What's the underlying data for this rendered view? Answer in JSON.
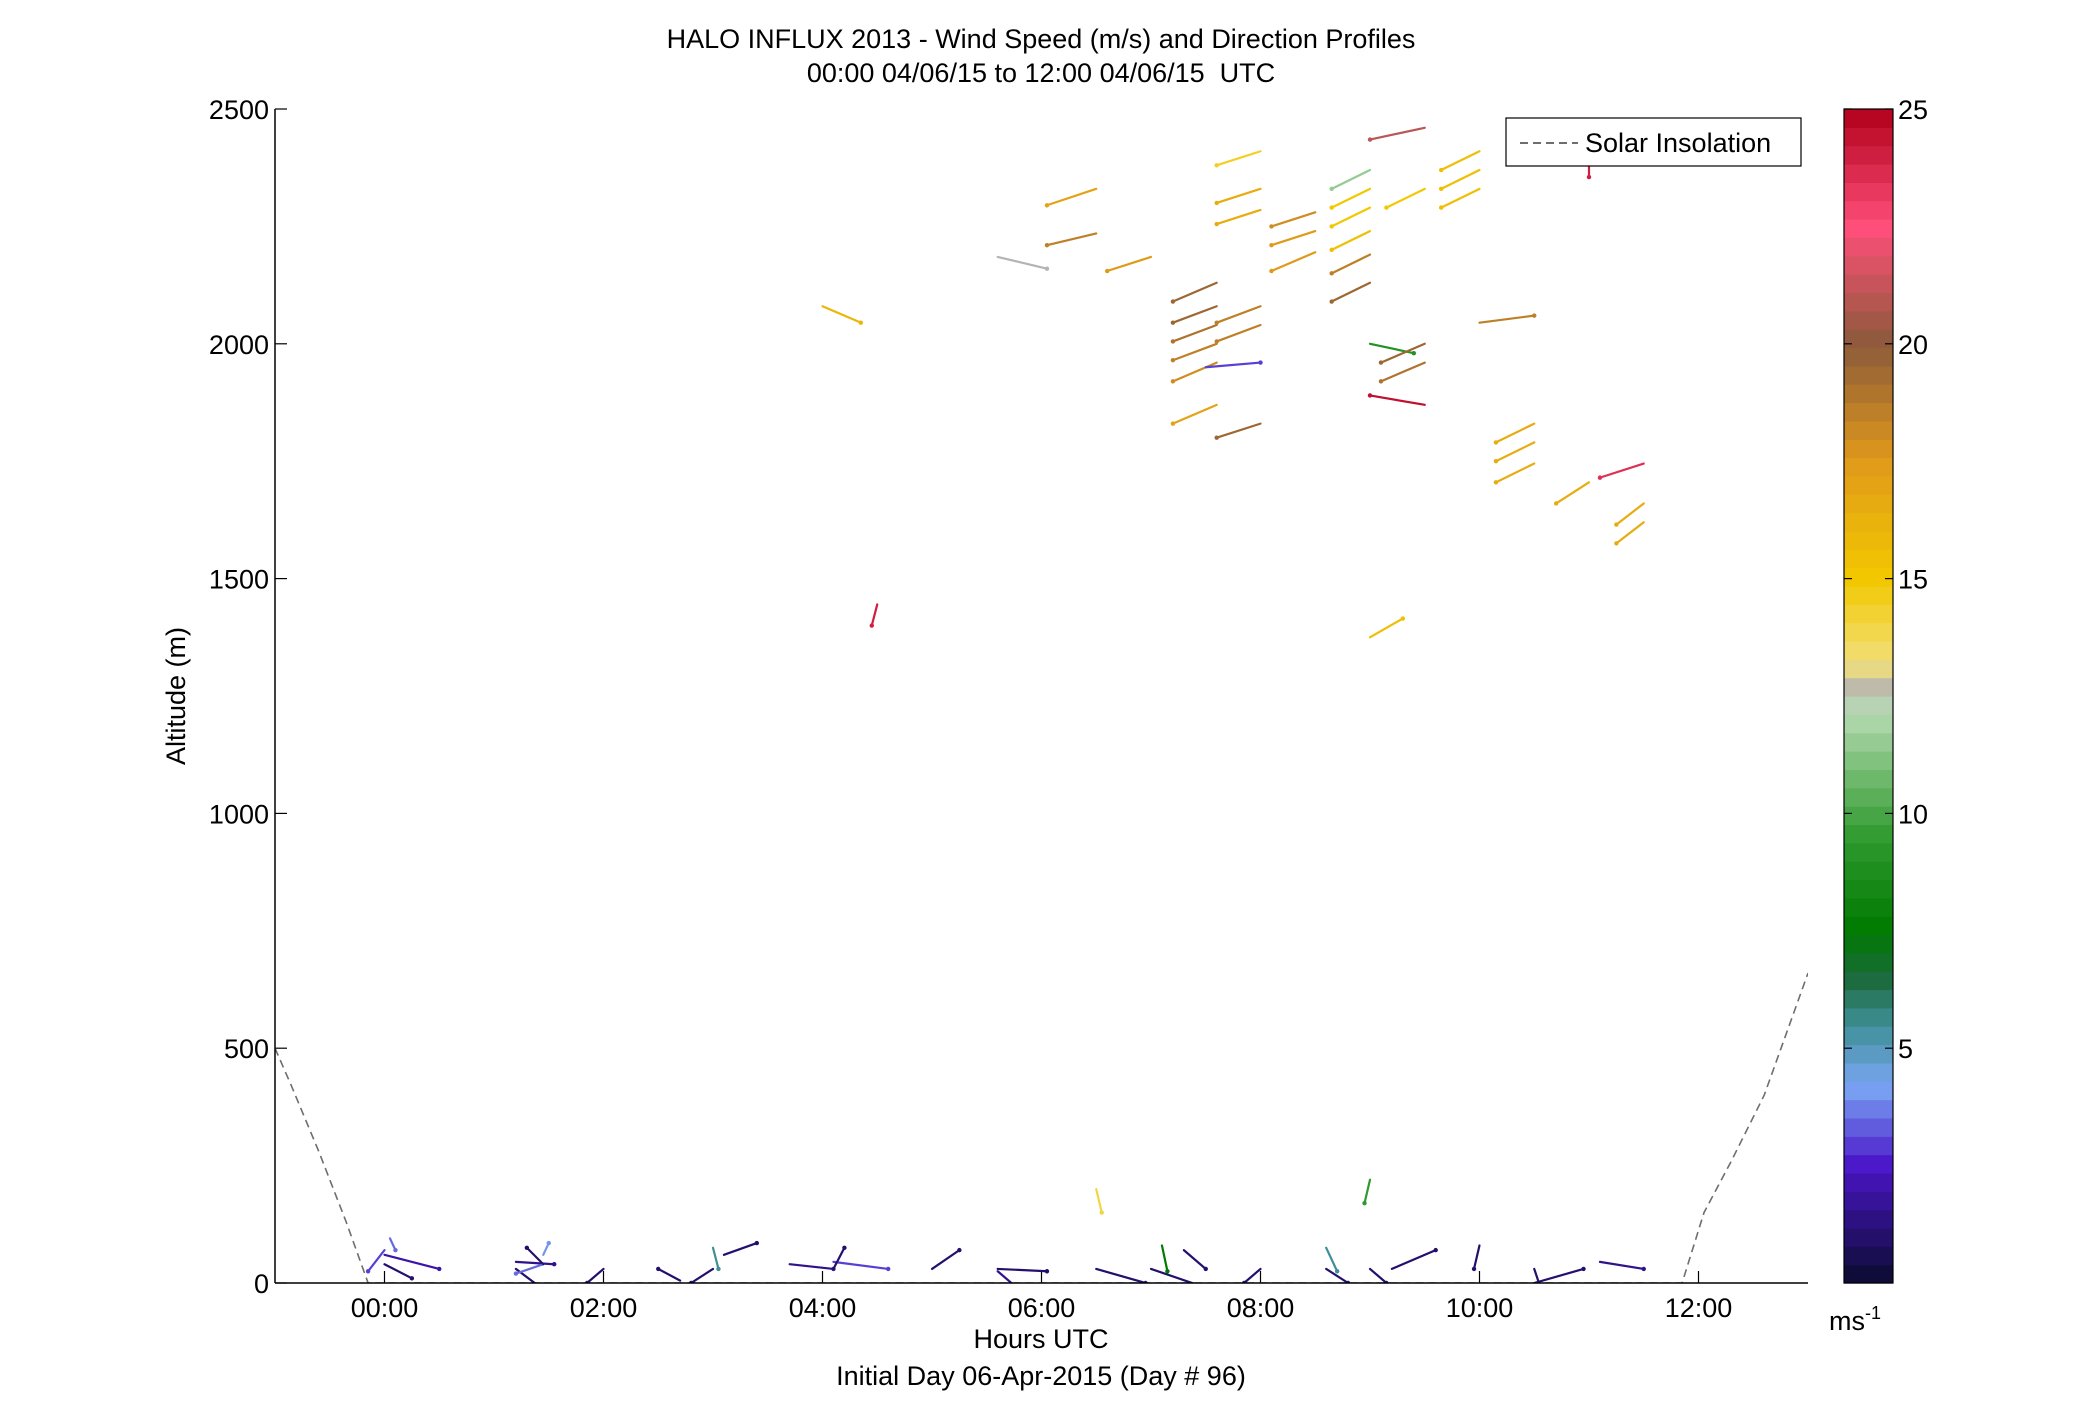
{
  "chart_data": {
    "type": "scatter",
    "title": "HALO INFLUX 2013 - Wind Speed (m/s) and Direction Profiles",
    "subtitle": "00:00 04/06/15 to 12:00 04/06/15  UTC",
    "xlabel": "Hours UTC",
    "xlabel_note": "Initial Day 06-Apr-2015 (Day # 96)",
    "ylabel": "Altitude (m)",
    "xlim": [
      -1,
      13
    ],
    "ylim": [
      0,
      2500
    ],
    "x_ticks": [
      0,
      2,
      4,
      6,
      8,
      10,
      12
    ],
    "x_tick_labels": [
      "00:00",
      "02:00",
      "04:00",
      "06:00",
      "08:00",
      "10:00",
      "12:00"
    ],
    "y_ticks": [
      0,
      500,
      1000,
      1500,
      2000,
      2500
    ],
    "y_tick_labels": [
      "0",
      "500",
      "1000",
      "1500",
      "2000",
      "2500"
    ],
    "colorbar": {
      "range": [
        0,
        25
      ],
      "ticks": [
        5,
        10,
        15,
        20,
        25
      ],
      "tick_labels": [
        "5",
        "10",
        "15",
        "20",
        "25"
      ],
      "unit_label": "ms",
      "unit_exponent": "-1",
      "stops": [
        {
          "v": 0,
          "c": "#0b0b2e"
        },
        {
          "v": 2.5,
          "c": "#4a16c8"
        },
        {
          "v": 4.2,
          "c": "#7aa6f4"
        },
        {
          "v": 5.5,
          "c": "#3f8f97"
        },
        {
          "v": 6.5,
          "c": "#1b6a3a"
        },
        {
          "v": 7.5,
          "c": "#007a00"
        },
        {
          "v": 9.5,
          "c": "#2f9a2f"
        },
        {
          "v": 12.2,
          "c": "#b9dcb4"
        },
        {
          "v": 12.6,
          "c": "#b4b4b4"
        },
        {
          "v": 13.2,
          "c": "#f2e07a"
        },
        {
          "v": 15,
          "c": "#f2c800"
        },
        {
          "v": 17.5,
          "c": "#e09a1a"
        },
        {
          "v": 20,
          "c": "#8c5a3a"
        },
        {
          "v": 22.5,
          "c": "#ff4f7a"
        },
        {
          "v": 25,
          "c": "#b0001a"
        }
      ]
    },
    "legend": {
      "position": "top-right",
      "entries": [
        "Solar Insolation"
      ]
    },
    "series": [
      {
        "name": "Solar Insolation",
        "style": "dashed",
        "color": "#6e6e6e",
        "x": [
          -1.0,
          -0.85,
          -0.6,
          -0.35,
          -0.15,
          11.85,
          12.05,
          12.3,
          12.6,
          13.0
        ],
        "y": [
          500,
          420,
          280,
          130,
          0,
          0,
          150,
          260,
          400,
          660
        ]
      }
    ],
    "wind_barbs": {
      "note": "each vector: origin time (hours), altitude (m), speed (m/s), and the end offset in hours and metres",
      "vectors": [
        [
          0.0,
          60,
          2.0,
          0.5,
          -30
        ],
        [
          0.0,
          40,
          1.0,
          0.25,
          -30
        ],
        [
          0.0,
          70,
          3.0,
          -0.15,
          -45
        ],
        [
          0.05,
          95,
          3.5,
          0.05,
          -25
        ],
        [
          1.2,
          45,
          1.5,
          0.35,
          -5
        ],
        [
          1.2,
          30,
          1.0,
          0.2,
          -35
        ],
        [
          1.45,
          60,
          4.0,
          0.05,
          25
        ],
        [
          1.45,
          40,
          3.5,
          -0.25,
          -20
        ],
        [
          1.45,
          40,
          1.0,
          -0.15,
          35
        ],
        [
          2.0,
          30,
          1.0,
          -0.15,
          -30
        ],
        [
          2.7,
          5,
          1.0,
          -0.2,
          25
        ],
        [
          3.0,
          30,
          1.0,
          -0.2,
          -30
        ],
        [
          3.1,
          60,
          1.0,
          0.3,
          25
        ],
        [
          3.0,
          75,
          5.5,
          0.05,
          -45
        ],
        [
          3.7,
          40,
          1.5,
          0.4,
          -10
        ],
        [
          4.1,
          45,
          3.0,
          0.5,
          -15
        ],
        [
          4.1,
          30,
          1.0,
          0.1,
          45
        ],
        [
          5.0,
          30,
          1.0,
          0.25,
          40
        ],
        [
          5.6,
          30,
          1.0,
          0.45,
          -5
        ],
        [
          5.6,
          25,
          1.5,
          0.15,
          -30
        ],
        [
          6.5,
          30,
          1.0,
          0.45,
          -30
        ],
        [
          7.0,
          30,
          1.0,
          0.5,
          -40
        ],
        [
          7.1,
          80,
          7.5,
          0.05,
          -55
        ],
        [
          7.3,
          70,
          1.0,
          0.2,
          -40
        ],
        [
          8.0,
          30,
          1.0,
          -0.15,
          -30
        ],
        [
          8.6,
          30,
          1.0,
          0.2,
          -30
        ],
        [
          8.6,
          75,
          5.5,
          0.1,
          -50
        ],
        [
          9.0,
          30,
          1.0,
          0.15,
          -30
        ],
        [
          9.2,
          30,
          1.0,
          0.4,
          40
        ],
        [
          10.0,
          80,
          1.0,
          -0.05,
          -50
        ],
        [
          10.5,
          30,
          1.0,
          0.05,
          -35
        ],
        [
          10.5,
          0,
          1.0,
          0.45,
          30
        ],
        [
          11.1,
          45,
          1.5,
          0.4,
          -15
        ],
        [
          6.5,
          200,
          14.0,
          0.05,
          -50
        ],
        [
          9.0,
          220,
          9.5,
          -0.05,
          -50
        ],
        [
          4.5,
          1445,
          24.0,
          -0.05,
          -45
        ],
        [
          9.0,
          1375,
          15.5,
          0.3,
          40
        ],
        [
          4.0,
          2080,
          16.0,
          0.35,
          -35
        ],
        [
          5.6,
          2185,
          12.6,
          0.45,
          -25
        ],
        [
          6.5,
          2235,
          18.5,
          -0.45,
          -25
        ],
        [
          6.5,
          2330,
          17.0,
          -0.45,
          -35
        ],
        [
          7.0,
          2185,
          17.5,
          -0.4,
          -30
        ],
        [
          7.6,
          2130,
          19.5,
          -0.4,
          -40
        ],
        [
          7.6,
          2080,
          19.5,
          -0.4,
          -35
        ],
        [
          7.6,
          2040,
          19.0,
          -0.4,
          -35
        ],
        [
          7.6,
          2000,
          18.5,
          -0.4,
          -35
        ],
        [
          7.6,
          1960,
          18.0,
          -0.4,
          -40
        ],
        [
          7.6,
          1870,
          17.0,
          -0.4,
          -40
        ],
        [
          7.5,
          1950,
          3.0,
          0.5,
          10
        ],
        [
          8.0,
          2080,
          18.5,
          -0.4,
          -35
        ],
        [
          8.0,
          2040,
          18.5,
          -0.4,
          -35
        ],
        [
          8.0,
          1830,
          19.5,
          -0.4,
          -30
        ],
        [
          8.0,
          2410,
          14.5,
          -0.4,
          -30
        ],
        [
          8.0,
          2330,
          16.5,
          -0.4,
          -30
        ],
        [
          8.0,
          2285,
          16.5,
          -0.4,
          -30
        ],
        [
          8.5,
          2280,
          18.0,
          -0.4,
          -30
        ],
        [
          8.5,
          2240,
          17.5,
          -0.4,
          -30
        ],
        [
          8.5,
          2195,
          17.5,
          -0.4,
          -40
        ],
        [
          9.0,
          2370,
          11.5,
          -0.35,
          -40
        ],
        [
          9.0,
          2330,
          15.0,
          -0.35,
          -40
        ],
        [
          9.0,
          2290,
          15.0,
          -0.35,
          -40
        ],
        [
          9.0,
          2240,
          15.5,
          -0.35,
          -40
        ],
        [
          9.0,
          2190,
          18.5,
          -0.35,
          -40
        ],
        [
          9.0,
          2130,
          19.5,
          -0.35,
          -40
        ],
        [
          9.0,
          2000,
          9.0,
          0.4,
          -20
        ],
        [
          9.5,
          2000,
          19.5,
          -0.4,
          -40
        ],
        [
          9.5,
          1960,
          19.0,
          -0.4,
          -40
        ],
        [
          9.5,
          2330,
          15.0,
          -0.35,
          -40
        ],
        [
          9.5,
          1870,
          24.5,
          -0.5,
          20
        ],
        [
          9.5,
          2460,
          21.0,
          -0.5,
          -25
        ],
        [
          10.0,
          2410,
          15.5,
          -0.35,
          -40
        ],
        [
          10.0,
          2370,
          15.5,
          -0.35,
          -40
        ],
        [
          10.0,
          2330,
          15.5,
          -0.35,
          -40
        ],
        [
          10.0,
          2045,
          18.5,
          0.5,
          15
        ],
        [
          10.5,
          1830,
          16.5,
          -0.35,
          -40
        ],
        [
          10.5,
          1790,
          16.5,
          -0.35,
          -40
        ],
        [
          10.5,
          1745,
          16.5,
          -0.35,
          -40
        ],
        [
          11.0,
          1705,
          16.5,
          -0.3,
          -45
        ],
        [
          11.0,
          2380,
          24.0,
          0.0,
          -25
        ],
        [
          11.5,
          1745,
          23.5,
          -0.4,
          -30
        ],
        [
          11.5,
          1660,
          16.5,
          -0.25,
          -45
        ],
        [
          11.5,
          1620,
          16.5,
          -0.25,
          -45
        ]
      ]
    }
  }
}
